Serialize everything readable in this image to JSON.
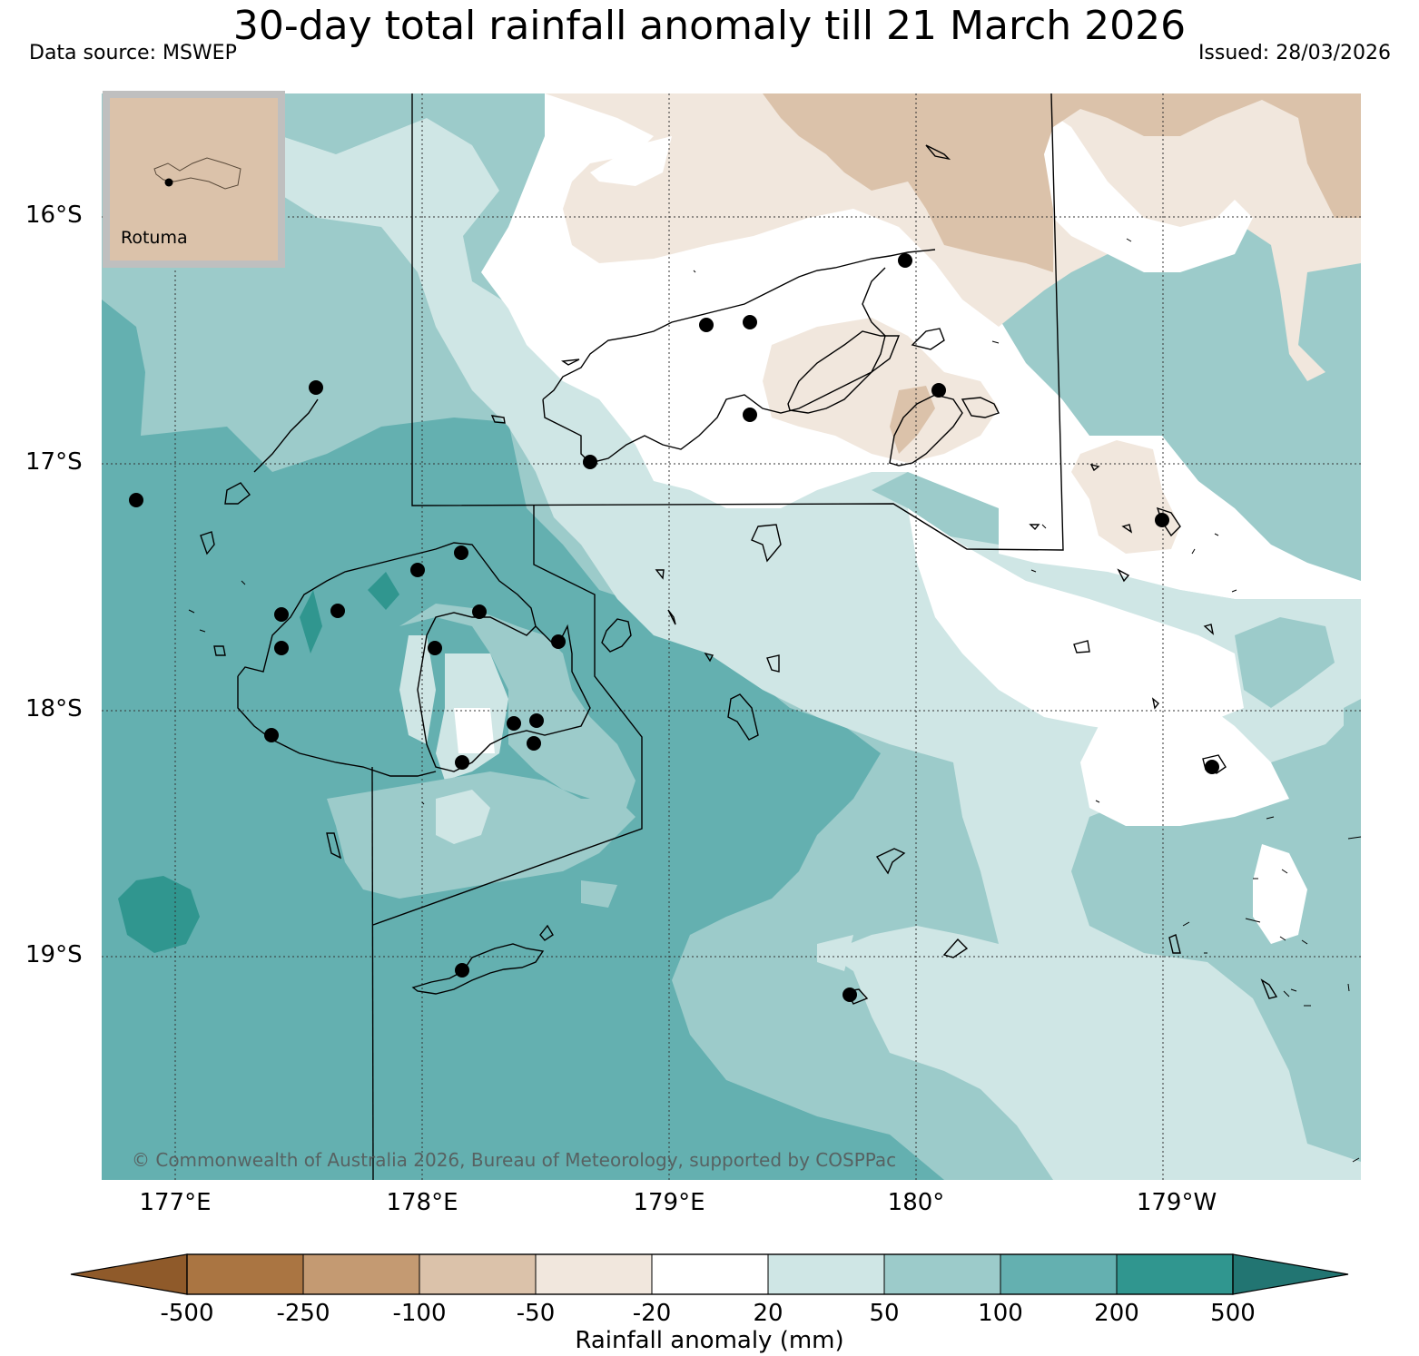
{
  "title": "30-day total rainfall anomaly till 21 March 2026",
  "data_source": "Data source: MSWEP",
  "issued": "Issued: 28/03/2026",
  "copyright": "© Commonwealth of Australia 2026, Bureau of Meteorology, supported by COSPPac",
  "inset": {
    "label": "Rotuma"
  },
  "axes": {
    "latitudes": [
      "16°S",
      "17°S",
      "18°S",
      "19°S"
    ],
    "longitudes": [
      "177°E",
      "178°E",
      "179°E",
      "180°",
      "179°W"
    ]
  },
  "colorbar": {
    "label": "Rainfall anomaly (mm)",
    "ticks": [
      "-500",
      "-250",
      "-100",
      "-50",
      "-20",
      "20",
      "50",
      "100",
      "200",
      "500"
    ],
    "colors": [
      "#8f5a2a",
      "#aa7542",
      "#c49a72",
      "#dbc2aa",
      "#f1e7dd",
      "#ffffff",
      "#cfe6e5",
      "#9ccbca",
      "#64b0b0",
      "#30968f",
      "#227572"
    ]
  }
}
